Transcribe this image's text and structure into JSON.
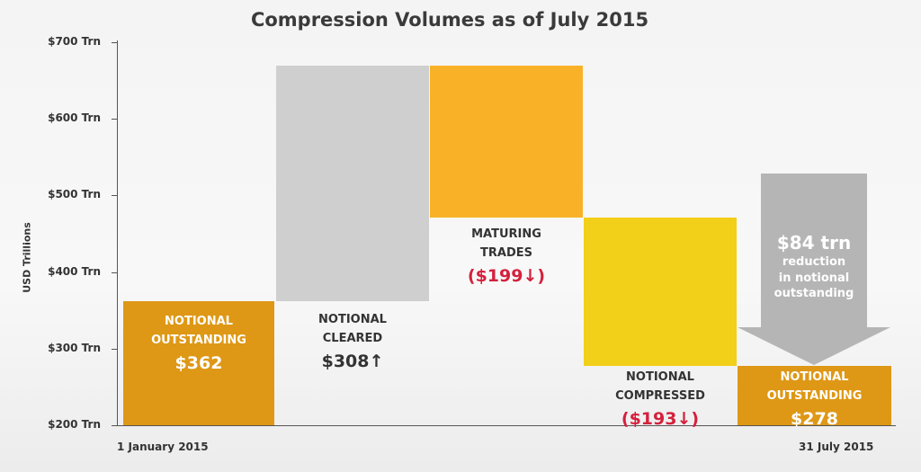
{
  "chart_data": {
    "type": "waterfall",
    "title": "Compression Volumes as of July 2015",
    "ylabel": "USD Trillions",
    "ylim": [
      200,
      700
    ],
    "yticks": [
      "$700 Trn",
      "$600 Trn",
      "$500 Trn",
      "$400 Trn",
      "$300 Trn",
      "$200 Trn"
    ],
    "ytick_values": [
      700,
      600,
      500,
      400,
      300,
      200
    ],
    "x_start_label": "1 January 2015",
    "x_end_label": "31 July 2015",
    "steps": [
      {
        "name": "NOTIONAL OUTSTANDING",
        "value": 362,
        "display": "$362",
        "kind": "total",
        "color": "#de9816"
      },
      {
        "name": "NOTIONAL CLEARED",
        "value": 308,
        "display": "$308",
        "kind": "increase",
        "color": "#cfcfcf",
        "direction_glyph": "↑"
      },
      {
        "name": "MATURING TRADES",
        "value": -199,
        "display": "($199",
        "kind": "decrease",
        "color": "#f9b228",
        "direction_glyph": "↓)"
      },
      {
        "name": "NOTIONAL COMPRESSED",
        "value": -193,
        "display": "($193",
        "kind": "decrease",
        "color": "#f2cf18",
        "direction_glyph": "↓)"
      },
      {
        "name": "NOTIONAL OUTSTANDING",
        "value": 278,
        "display": "$278",
        "kind": "total",
        "color": "#de9816"
      }
    ],
    "annotation": {
      "big": "$84 trn",
      "lines": [
        "reduction",
        "in notional",
        "outstanding"
      ],
      "value": 84,
      "color": "#b5b5b5"
    }
  }
}
